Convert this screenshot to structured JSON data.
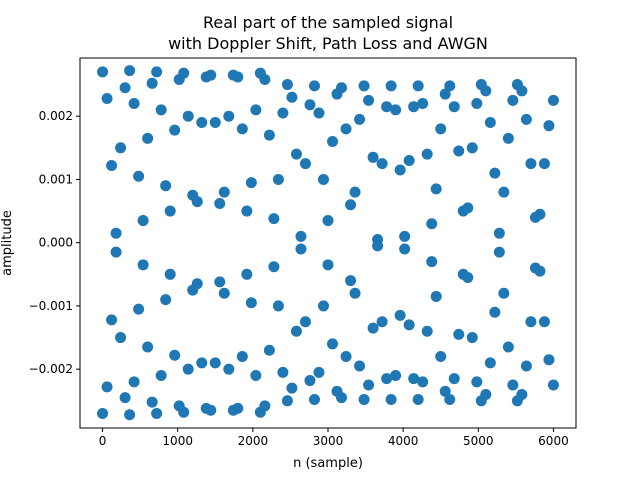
{
  "chart_data": {
    "type": "scatter",
    "title_line1": "Real part of the sampled signal",
    "title_line2": "with Doppler Shift, Path Loss and AWGN",
    "xlabel": "n (sample)",
    "ylabel": "amplitude",
    "xlim": [
      -300,
      6300
    ],
    "ylim": [
      -0.00293,
      0.00292
    ],
    "x_ticks": [
      0,
      1000,
      2000,
      3000,
      4000,
      5000,
      6000
    ],
    "x_tick_labels": [
      "0",
      "1000",
      "2000",
      "3000",
      "4000",
      "5000",
      "6000"
    ],
    "y_ticks": [
      -0.002,
      -0.001,
      0.0,
      0.001,
      0.002
    ],
    "y_tick_labels": [
      "−0.002",
      "−0.001",
      "0.000",
      "0.001",
      "0.002"
    ],
    "grid": false,
    "marker_color": "#1f77b4",
    "series": [
      {
        "x": [
          0,
          60,
          120,
          180,
          240,
          300,
          360,
          420,
          480,
          540,
          600,
          660,
          720,
          780,
          840,
          900,
          960,
          1020,
          1080,
          1140,
          1200,
          1260,
          1320,
          1380,
          1440,
          1500,
          1560,
          1620,
          1680,
          1740,
          1800,
          1860,
          1920,
          1980,
          2040,
          2100,
          2160,
          2220,
          2280,
          2340,
          2400,
          2460,
          2520,
          2580,
          2640,
          2700,
          2760,
          2820,
          2880,
          2940,
          3000,
          3060,
          3120,
          3180,
          3240,
          3300,
          3360,
          3420,
          3480,
          3540,
          3600,
          3660,
          3720,
          3780,
          3840,
          3900,
          3960,
          4020,
          4080,
          4140,
          4200,
          4260,
          4320,
          4380,
          4440,
          4500,
          4560,
          4620,
          4680,
          4740,
          4800,
          4860,
          4920,
          4980,
          5040,
          5100,
          5160,
          5220,
          5280,
          5340,
          5400,
          5460,
          5520,
          5580,
          5640,
          5700,
          5760,
          5820,
          5880,
          5940,
          6000
        ],
        "values": [
          0.0027,
          0.00228,
          0.00122,
          -0.00015,
          -0.0015,
          -0.00245,
          -0.00272,
          -0.0022,
          -0.00105,
          0.00035,
          0.00165,
          0.00252,
          0.0027,
          0.0021,
          0.0009,
          -0.0005,
          -0.00178,
          -0.00258,
          -0.00268,
          -0.002,
          -0.00075,
          0.00065,
          0.0019,
          0.00262,
          0.00265,
          0.0019,
          0.00062,
          -0.0008,
          -0.002,
          -0.00265,
          -0.00262,
          -0.0018,
          -0.0005,
          0.00095,
          0.0021,
          0.00268,
          0.00258,
          0.0017,
          0.00038,
          -0.001,
          -0.00205,
          -0.0025,
          -0.0023,
          -0.0014,
          -0.0001,
          0.00125,
          0.00218,
          0.00248,
          0.00205,
          0.001,
          -0.00035,
          -0.0016,
          -0.00235,
          -0.00245,
          -0.0018,
          -0.0006,
          0.0008,
          0.00195,
          0.00248,
          0.00225,
          0.00135,
          5e-05,
          -0.00125,
          -0.00215,
          -0.00248,
          -0.0021,
          -0.00115,
          0.0001,
          0.0013,
          0.00215,
          0.00248,
          0.0022,
          0.0014,
          0.0003,
          -0.00085,
          -0.0018,
          -0.00235,
          -0.00248,
          -0.00215,
          -0.00145,
          -0.0005,
          0.00055,
          0.0015,
          0.0022,
          0.0025,
          0.0024,
          0.0019,
          0.0011,
          0.00015,
          -0.0008,
          -0.00165,
          -0.00225,
          -0.0025,
          -0.0024,
          -0.00195,
          -0.00125,
          -0.0004,
          0.00045,
          0.00125,
          0.00185,
          0.00225
        ]
      },
      {
        "x": [
          0,
          60,
          120,
          180,
          240,
          300,
          360,
          420,
          480,
          540,
          600,
          660,
          720,
          780,
          840,
          900,
          960,
          1020,
          1080,
          1140,
          1200,
          1260,
          1320,
          1380,
          1440,
          1500,
          1560,
          1620,
          1680,
          1740,
          1800,
          1860,
          1920,
          1980,
          2040,
          2100,
          2160,
          2220,
          2280,
          2340,
          2400,
          2460,
          2520,
          2580,
          2640,
          2700,
          2760,
          2820,
          2880,
          2940,
          3000,
          3060,
          3120,
          3180,
          3240,
          3300,
          3360,
          3420,
          3480,
          3540,
          3600,
          3660,
          3720,
          3780,
          3840,
          3900,
          3960,
          4020,
          4080,
          4140,
          4200,
          4260,
          4320,
          4380,
          4440,
          4500,
          4560,
          4620,
          4680,
          4740,
          4800,
          4860,
          4920,
          4980,
          5040,
          5100,
          5160,
          5220,
          5280,
          5340,
          5400,
          5460,
          5520,
          5580,
          5640,
          5700,
          5760,
          5820,
          5880,
          5940,
          6000
        ],
        "values": [
          -0.0027,
          -0.00228,
          -0.00122,
          0.00015,
          0.0015,
          0.00245,
          0.00272,
          0.0022,
          0.00105,
          -0.00035,
          -0.00165,
          -0.00252,
          -0.0027,
          -0.0021,
          -0.0009,
          0.0005,
          0.00178,
          0.00258,
          0.00268,
          0.002,
          0.00075,
          -0.00065,
          -0.0019,
          -0.00262,
          -0.00265,
          -0.0019,
          -0.00062,
          0.0008,
          0.002,
          0.00265,
          0.00262,
          0.0018,
          0.0005,
          -0.00095,
          -0.0021,
          -0.00268,
          -0.00258,
          -0.0017,
          -0.00038,
          0.001,
          0.00205,
          0.0025,
          0.0023,
          0.0014,
          0.0001,
          -0.00125,
          -0.00218,
          -0.00248,
          -0.00205,
          -0.001,
          0.00035,
          0.0016,
          0.00235,
          0.00245,
          0.0018,
          0.0006,
          -0.0008,
          -0.00195,
          -0.00248,
          -0.00225,
          -0.00135,
          -5e-05,
          0.00125,
          0.00215,
          0.00248,
          0.0021,
          0.00115,
          -0.0001,
          -0.0013,
          -0.00215,
          -0.00248,
          -0.0022,
          -0.0014,
          -0.0003,
          0.00085,
          0.0018,
          0.00235,
          0.00248,
          0.00215,
          0.00145,
          0.0005,
          -0.00055,
          -0.0015,
          -0.0022,
          -0.0025,
          -0.0024,
          -0.0019,
          -0.0011,
          -0.00015,
          0.0008,
          0.00165,
          0.00225,
          0.0025,
          0.0024,
          0.00195,
          0.00125,
          0.0004,
          -0.00045,
          -0.00125,
          -0.00185,
          -0.00225
        ]
      }
    ]
  }
}
